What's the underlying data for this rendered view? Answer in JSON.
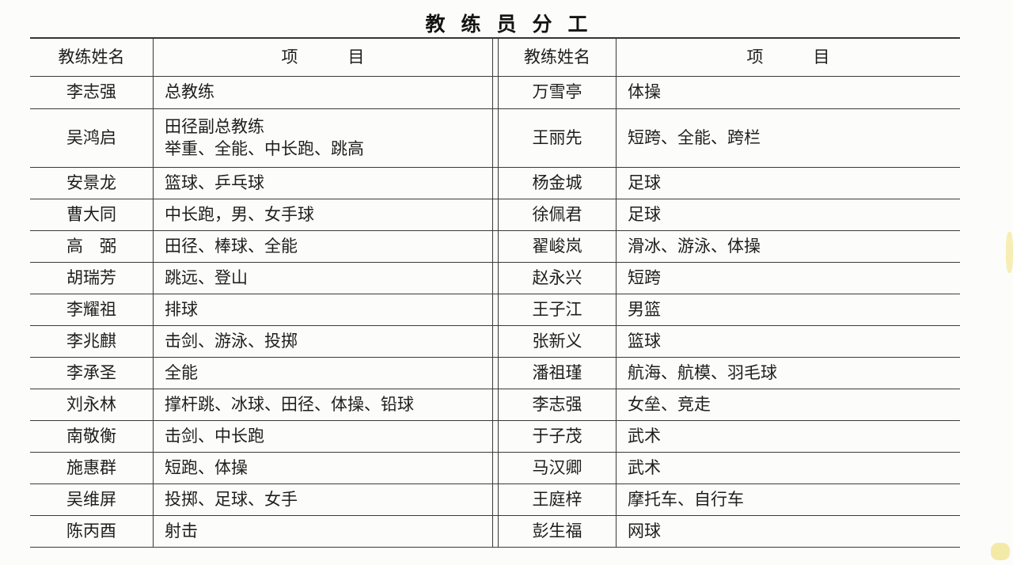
{
  "page": {
    "title": "教练员分工"
  },
  "table": {
    "header": {
      "name_label": "教练姓名",
      "items_label": "项　　　目"
    },
    "rows": [
      {
        "left_name": "李志强",
        "left_items": "总教练",
        "right_name": "万雪亭",
        "right_items": "体操"
      },
      {
        "left_name": "吴鸿启",
        "left_items": "田径副总教练\n举重、全能、中长跑、跳高",
        "right_name": "王丽先",
        "right_items": "短跨、全能、跨栏"
      },
      {
        "left_name": "安景龙",
        "left_items": "篮球、乒乓球",
        "right_name": "杨金城",
        "right_items": "足球"
      },
      {
        "left_name": "曹大同",
        "left_items": "中长跑，男、女手球",
        "right_name": "徐佩君",
        "right_items": "足球"
      },
      {
        "left_name": "高　弼",
        "left_items": "田径、棒球、全能",
        "right_name": "翟峻岚",
        "right_items": "滑冰、游泳、体操"
      },
      {
        "left_name": "胡瑞芳",
        "left_items": "跳远、登山",
        "right_name": "赵永兴",
        "right_items": "短跨"
      },
      {
        "left_name": "李耀祖",
        "left_items": "排球",
        "right_name": "王子江",
        "right_items": "男篮"
      },
      {
        "left_name": "李兆麒",
        "left_items": "击剑、游泳、投掷",
        "right_name": "张新义",
        "right_items": "篮球"
      },
      {
        "left_name": "李承圣",
        "left_items": "全能",
        "right_name": "潘祖瑾",
        "right_items": "航海、航模、羽毛球"
      },
      {
        "left_name": "刘永林",
        "left_items": "撑杆跳、冰球、田径、体操、铅球",
        "right_name": "李志强",
        "right_items": "女垒、竞走"
      },
      {
        "left_name": "南敬衡",
        "left_items": "击剑、中长跑",
        "right_name": "于子茂",
        "right_items": "武术"
      },
      {
        "left_name": "施惠群",
        "left_items": "短跑、体操",
        "right_name": "马汉卿",
        "right_items": "武术"
      },
      {
        "left_name": "吴维屏",
        "left_items": "投掷、足球、女手",
        "right_name": "王庭梓",
        "right_items": "摩托车、自行车"
      },
      {
        "left_name": "陈丙酉",
        "left_items": "射击",
        "right_name": "彭生福",
        "right_items": "网球"
      }
    ]
  }
}
